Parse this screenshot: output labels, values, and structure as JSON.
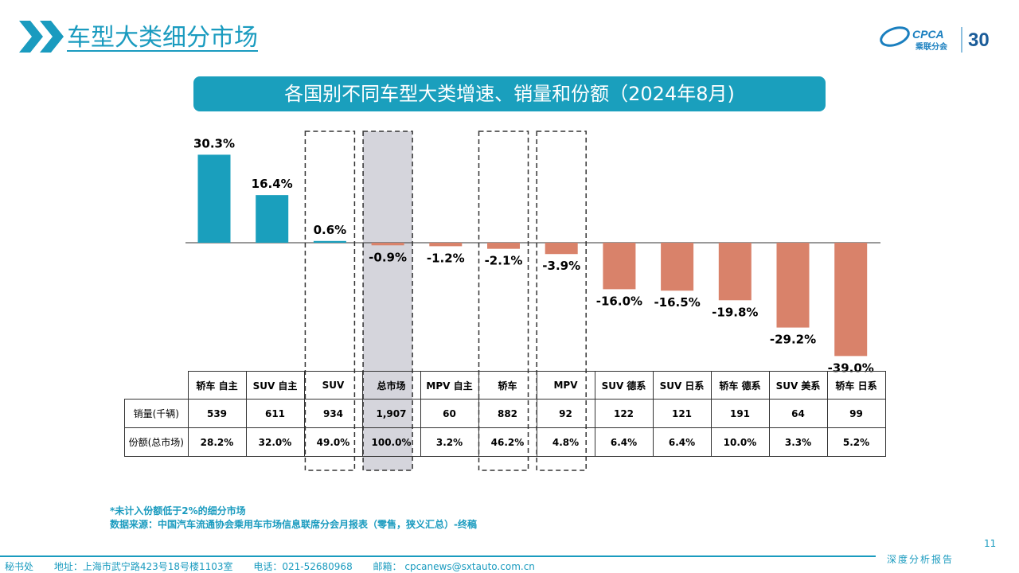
{
  "header": {
    "title": "车型大类细分市场"
  },
  "banner": {
    "title": "各国别不同车型大类增速、销量和份额（2024年8月)"
  },
  "logo": {
    "text": "CPCA",
    "sub": "乘联分会",
    "anniv": "30"
  },
  "chart_data": {
    "type": "bar",
    "categories": [
      "轿车 自主",
      "SUV 自主",
      "SUV",
      "总市场",
      "MPV 自主",
      "轿车",
      "MPV",
      "SUV 德系",
      "SUV 日系",
      "轿车 德系",
      "SUV 美系",
      "轿车 日系"
    ],
    "values": [
      30.3,
      16.4,
      0.6,
      -0.9,
      -1.2,
      -2.1,
      -3.9,
      -16.0,
      -16.5,
      -19.8,
      -29.2,
      -39.0
    ],
    "labels": [
      "30.3%",
      "16.4%",
      "0.6%",
      "-0.9%",
      "-1.2%",
      "-2.1%",
      "-3.9%",
      "-16.0%",
      "-16.5%",
      "-19.8%",
      "-29.2%",
      "-39.0%"
    ],
    "ylim": [
      -40,
      32
    ],
    "colors": {
      "positive": "#1a9fbd",
      "negative": "#d9826a"
    },
    "highlight_boxes_dashed": [
      "SUV",
      "轿车",
      "MPV"
    ],
    "highlight_shaded": [
      "总市场"
    ],
    "table": {
      "headers": [
        "轿车 自主",
        "SUV 自主",
        "SUV",
        "总市场",
        "MPV 自主",
        "轿车",
        "MPV",
        "SUV 德系",
        "SUV 日系",
        "轿车 德系",
        "SUV 美系",
        "轿车 日系"
      ],
      "rows": [
        {
          "label": "销量(千辆)",
          "values": [
            "539",
            "611",
            "934",
            "1,907",
            "60",
            "882",
            "92",
            "122",
            "121",
            "191",
            "64",
            "99"
          ]
        },
        {
          "label": "份额(总市场)",
          "values": [
            "28.2%",
            "32.0%",
            "49.0%",
            "100.0%",
            "3.2%",
            "46.2%",
            "4.8%",
            "6.4%",
            "6.4%",
            "10.0%",
            "3.3%",
            "5.2%"
          ]
        }
      ]
    }
  },
  "footnote": {
    "line1": "*未计入份额低于2%的细分市场",
    "line2": "数据来源：中国汽车流通协会乘用车市场信息联席分会月报表（零售，狭义汇总）-终稿"
  },
  "page_number": "11",
  "footer": {
    "org": "秘书处",
    "address": "地址：上海市武宁路423号18号楼1103室",
    "phone": "电话：021-52680968",
    "email": "邮箱：  cpcanews@sxtauto.com.cn",
    "tag": "深度分析报告"
  }
}
